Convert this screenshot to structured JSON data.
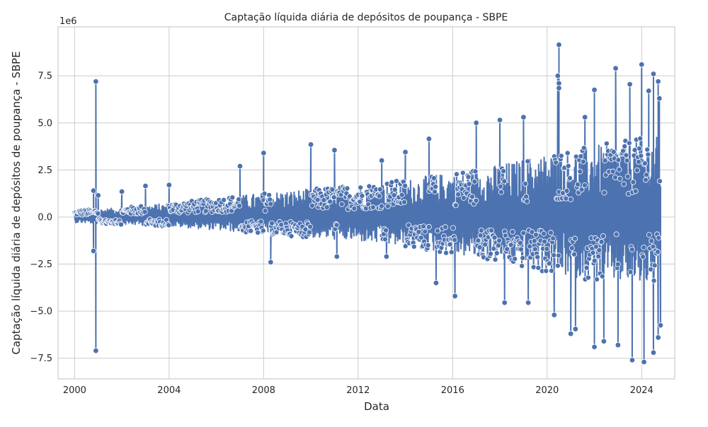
{
  "chart_data": {
    "type": "line",
    "title": "Captação líquida diária de depósitos de poupança - SBPE",
    "xlabel": "Data",
    "ylabel": "Captação líquida diária de depósitos de poupança - SBPE",
    "y_offset_label": "1e6",
    "xlim": [
      1999.3,
      2025.4
    ],
    "ylim": [
      -8.6,
      10.1
    ],
    "x_ticks": [
      2000,
      2004,
      2008,
      2012,
      2016,
      2020,
      2024
    ],
    "x_tick_labels": [
      "2000",
      "2004",
      "2008",
      "2012",
      "2016",
      "2020",
      "2024"
    ],
    "y_ticks": [
      -7.5,
      -5.0,
      -2.5,
      0.0,
      2.5,
      5.0,
      7.5
    ],
    "y_tick_labels": [
      "−7.5",
      "−5.0",
      "−2.5",
      "0.0",
      "2.5",
      "5.0",
      "7.5"
    ],
    "grid": true,
    "marker": "circle",
    "series": [
      {
        "color": "#4c72b0",
        "envelope": {
          "x": [
            2000,
            2002,
            2004,
            2006,
            2008,
            2010,
            2012,
            2014,
            2016,
            2018,
            2020,
            2022,
            2024,
            2024.8
          ],
          "typical_max": [
            0.35,
            0.5,
            0.75,
            1.0,
            1.3,
            1.5,
            1.7,
            2.0,
            2.4,
            2.8,
            3.4,
            3.8,
            4.2,
            4.3
          ],
          "typical_min": [
            -0.3,
            -0.4,
            -0.5,
            -0.7,
            -0.9,
            -1.1,
            -1.3,
            -1.6,
            -2.0,
            -2.4,
            -3.0,
            -3.4,
            -3.6,
            -3.6
          ]
        },
        "extremes": [
          {
            "x": 2000.9,
            "y": 7.2
          },
          {
            "x": 2000.9,
            "y": -7.1
          },
          {
            "x": 2000.8,
            "y": 1.4
          },
          {
            "x": 2000.8,
            "y": -1.8
          },
          {
            "x": 2001.0,
            "y": 1.15
          },
          {
            "x": 2002.0,
            "y": 1.35
          },
          {
            "x": 2003.0,
            "y": 1.65
          },
          {
            "x": 2004.0,
            "y": 1.7
          },
          {
            "x": 2007.0,
            "y": 2.7
          },
          {
            "x": 2008.0,
            "y": 3.4
          },
          {
            "x": 2008.3,
            "y": -2.4
          },
          {
            "x": 2010.0,
            "y": 3.85
          },
          {
            "x": 2011.0,
            "y": 3.55
          },
          {
            "x": 2011.1,
            "y": -2.1
          },
          {
            "x": 2013.0,
            "y": 3.0
          },
          {
            "x": 2013.2,
            "y": -2.1
          },
          {
            "x": 2014.0,
            "y": 3.45
          },
          {
            "x": 2015.0,
            "y": 4.15
          },
          {
            "x": 2015.3,
            "y": -3.5
          },
          {
            "x": 2016.1,
            "y": -4.2
          },
          {
            "x": 2017.0,
            "y": 5.0
          },
          {
            "x": 2018.0,
            "y": 5.15
          },
          {
            "x": 2018.2,
            "y": -4.55
          },
          {
            "x": 2019.0,
            "y": 5.3
          },
          {
            "x": 2019.2,
            "y": -4.55
          },
          {
            "x": 2020.5,
            "y": 9.15
          },
          {
            "x": 2020.45,
            "y": 7.5
          },
          {
            "x": 2020.5,
            "y": 7.1
          },
          {
            "x": 2020.5,
            "y": 6.85
          },
          {
            "x": 2020.3,
            "y": -5.2
          },
          {
            "x": 2021.0,
            "y": -6.2
          },
          {
            "x": 2021.2,
            "y": -5.95
          },
          {
            "x": 2021.6,
            "y": 5.3
          },
          {
            "x": 2022.0,
            "y": 6.75
          },
          {
            "x": 2022.0,
            "y": -6.9
          },
          {
            "x": 2022.4,
            "y": -6.6
          },
          {
            "x": 2022.9,
            "y": 7.9
          },
          {
            "x": 2023.0,
            "y": -6.8
          },
          {
            "x": 2023.6,
            "y": -7.6
          },
          {
            "x": 2023.5,
            "y": 7.05
          },
          {
            "x": 2024.0,
            "y": 8.1
          },
          {
            "x": 2024.1,
            "y": -7.7
          },
          {
            "x": 2024.3,
            "y": 6.7
          },
          {
            "x": 2024.5,
            "y": 7.6
          },
          {
            "x": 2024.5,
            "y": -7.2
          },
          {
            "x": 2024.7,
            "y": 7.2
          },
          {
            "x": 2024.75,
            "y": 6.3
          },
          {
            "x": 2024.7,
            "y": -6.4
          },
          {
            "x": 2024.8,
            "y": -5.75
          }
        ]
      }
    ]
  }
}
